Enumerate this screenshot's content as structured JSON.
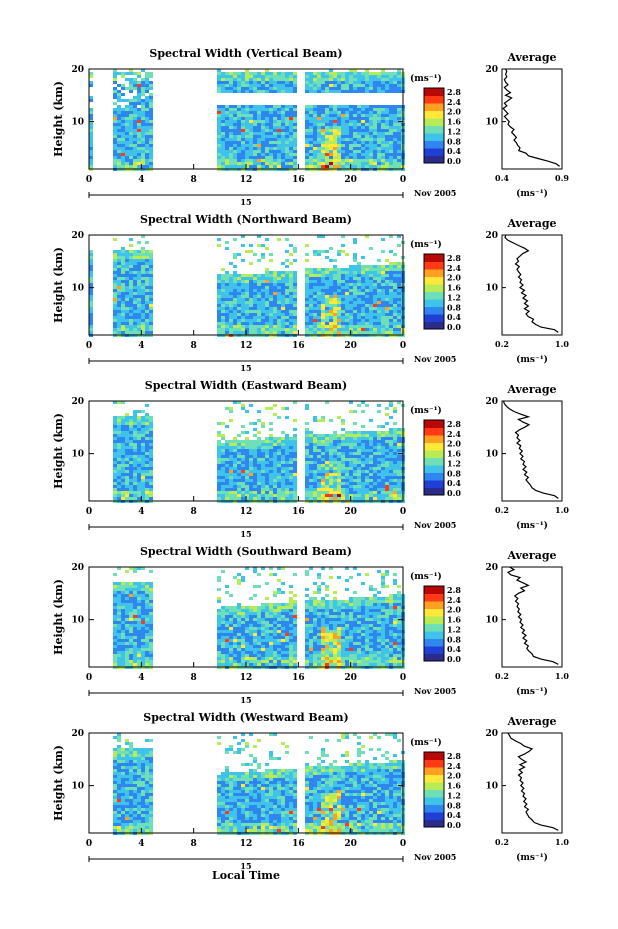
{
  "chart_data": {
    "type": "heatmap",
    "x_axis_label": "Local Time",
    "x_ticks": [
      "0",
      "4",
      "8",
      "12",
      "16",
      "20",
      "0"
    ],
    "date_label": "15",
    "month_label": "Nov 2005",
    "ylabel": "Height (km)",
    "y_ticks": [
      "10",
      "20"
    ],
    "unit_label": "(ms⁻¹)",
    "colorbar_ticks": [
      "2.8",
      "2.4",
      "2.0",
      "1.6",
      "1.2",
      "0.8",
      "0.4",
      "0.0"
    ],
    "colormap": [
      "#2b2b8c",
      "#1f3fd6",
      "#2f86ee",
      "#3fc3ea",
      "#6fe0b6",
      "#b7ec57",
      "#ffe83a",
      "#ffa022",
      "#ff3a15",
      "#b80808"
    ],
    "average_title": "Average",
    "average_unit": "(ms⁻¹)",
    "panels": [
      {
        "title": "Spectral Width (Vertical Beam)",
        "avg_xticks": [
          "0.4",
          "0.9"
        ],
        "avg_xlim": [
          0.4,
          0.9
        ],
        "avg_profile": [
          [
            0.88,
            1.5
          ],
          [
            0.85,
            2
          ],
          [
            0.78,
            2.5
          ],
          [
            0.7,
            3
          ],
          [
            0.62,
            3.5
          ],
          [
            0.6,
            4
          ],
          [
            0.54,
            4.5
          ],
          [
            0.55,
            5
          ],
          [
            0.53,
            5.5
          ],
          [
            0.52,
            6
          ],
          [
            0.5,
            6.5
          ],
          [
            0.52,
            7
          ],
          [
            0.5,
            7.5
          ],
          [
            0.48,
            8
          ],
          [
            0.5,
            8.5
          ],
          [
            0.47,
            9
          ],
          [
            0.45,
            9.5
          ],
          [
            0.46,
            10
          ],
          [
            0.44,
            10.5
          ],
          [
            0.42,
            11
          ],
          [
            0.45,
            11.5
          ],
          [
            0.43,
            12
          ],
          [
            0.41,
            12.5
          ],
          [
            0.44,
            13
          ],
          [
            0.42,
            13.5
          ],
          [
            0.45,
            14
          ],
          [
            0.48,
            14.5
          ],
          [
            0.43,
            15
          ],
          [
            0.47,
            15.5
          ],
          [
            0.44,
            16
          ],
          [
            0.42,
            16.5
          ],
          [
            0.45,
            17
          ],
          [
            0.43,
            17.5
          ],
          [
            0.42,
            18
          ],
          [
            0.44,
            18.5
          ],
          [
            0.43,
            19
          ],
          [
            0.44,
            19.5
          ],
          [
            0.43,
            20
          ]
        ]
      },
      {
        "title": "Spectral Width (Northward Beam)",
        "avg_xticks": [
          "0.2",
          "1.0"
        ],
        "avg_xlim": [
          0.2,
          1.0
        ],
        "avg_profile": [
          [
            0.95,
            1.5
          ],
          [
            0.9,
            2
          ],
          [
            0.72,
            2.5
          ],
          [
            0.65,
            3
          ],
          [
            0.6,
            3.5
          ],
          [
            0.62,
            4
          ],
          [
            0.55,
            4.5
          ],
          [
            0.52,
            5
          ],
          [
            0.56,
            5.5
          ],
          [
            0.5,
            6
          ],
          [
            0.55,
            6.5
          ],
          [
            0.5,
            7
          ],
          [
            0.54,
            7.5
          ],
          [
            0.48,
            8
          ],
          [
            0.52,
            8.5
          ],
          [
            0.46,
            9
          ],
          [
            0.5,
            9.5
          ],
          [
            0.44,
            10
          ],
          [
            0.48,
            10.5
          ],
          [
            0.44,
            11
          ],
          [
            0.46,
            11.5
          ],
          [
            0.42,
            12
          ],
          [
            0.45,
            12.5
          ],
          [
            0.42,
            13
          ],
          [
            0.4,
            13.5
          ],
          [
            0.43,
            14
          ],
          [
            0.38,
            14.5
          ],
          [
            0.42,
            15
          ],
          [
            0.4,
            15.5
          ],
          [
            0.44,
            16
          ],
          [
            0.48,
            16.5
          ],
          [
            0.55,
            17
          ],
          [
            0.5,
            17.5
          ],
          [
            0.42,
            18
          ],
          [
            0.35,
            18.5
          ],
          [
            0.28,
            19
          ],
          [
            0.24,
            19.5
          ],
          [
            0.25,
            20
          ]
        ]
      },
      {
        "title": "Spectral Width (Eastward Beam)",
        "avg_xticks": [
          "0.2",
          "1.0"
        ],
        "avg_xlim": [
          0.2,
          1.0
        ],
        "avg_profile": [
          [
            0.95,
            1.5
          ],
          [
            0.9,
            2
          ],
          [
            0.75,
            2.5
          ],
          [
            0.65,
            3
          ],
          [
            0.6,
            3.5
          ],
          [
            0.58,
            4
          ],
          [
            0.55,
            4.5
          ],
          [
            0.52,
            5
          ],
          [
            0.55,
            5.5
          ],
          [
            0.5,
            6
          ],
          [
            0.53,
            6.5
          ],
          [
            0.48,
            7
          ],
          [
            0.52,
            7.5
          ],
          [
            0.48,
            8
          ],
          [
            0.5,
            8.5
          ],
          [
            0.45,
            9
          ],
          [
            0.48,
            9.5
          ],
          [
            0.44,
            10
          ],
          [
            0.47,
            10.5
          ],
          [
            0.43,
            11
          ],
          [
            0.45,
            11.5
          ],
          [
            0.4,
            12
          ],
          [
            0.44,
            12.5
          ],
          [
            0.4,
            13
          ],
          [
            0.42,
            13.5
          ],
          [
            0.38,
            14
          ],
          [
            0.43,
            14.5
          ],
          [
            0.5,
            15
          ],
          [
            0.56,
            15.5
          ],
          [
            0.48,
            16
          ],
          [
            0.42,
            16.5
          ],
          [
            0.55,
            17
          ],
          [
            0.45,
            17.5
          ],
          [
            0.36,
            18
          ],
          [
            0.3,
            18.5
          ],
          [
            0.26,
            19
          ],
          [
            0.23,
            19.5
          ],
          [
            0.22,
            20
          ]
        ]
      },
      {
        "title": "Spectral Width (Southward Beam)",
        "avg_xticks": [
          "0.2",
          "1.0"
        ],
        "avg_xlim": [
          0.2,
          1.0
        ],
        "avg_profile": [
          [
            0.95,
            1.5
          ],
          [
            0.88,
            2
          ],
          [
            0.72,
            2.5
          ],
          [
            0.62,
            3
          ],
          [
            0.6,
            3.5
          ],
          [
            0.56,
            4
          ],
          [
            0.53,
            4.5
          ],
          [
            0.55,
            5
          ],
          [
            0.5,
            5.5
          ],
          [
            0.53,
            6
          ],
          [
            0.48,
            6.5
          ],
          [
            0.52,
            7
          ],
          [
            0.47,
            7.5
          ],
          [
            0.5,
            8
          ],
          [
            0.45,
            8.5
          ],
          [
            0.48,
            9
          ],
          [
            0.44,
            9.5
          ],
          [
            0.46,
            10
          ],
          [
            0.42,
            10.5
          ],
          [
            0.45,
            11
          ],
          [
            0.41,
            11.5
          ],
          [
            0.43,
            12
          ],
          [
            0.4,
            12.5
          ],
          [
            0.42,
            13
          ],
          [
            0.38,
            13.5
          ],
          [
            0.41,
            14
          ],
          [
            0.37,
            14.5
          ],
          [
            0.42,
            15
          ],
          [
            0.5,
            15.5
          ],
          [
            0.45,
            16
          ],
          [
            0.55,
            16.5
          ],
          [
            0.48,
            17
          ],
          [
            0.4,
            17.5
          ],
          [
            0.44,
            18
          ],
          [
            0.32,
            18.5
          ],
          [
            0.28,
            19
          ],
          [
            0.36,
            19.5
          ],
          [
            0.3,
            20
          ]
        ]
      },
      {
        "title": "Spectral Width (Westward Beam)",
        "avg_xticks": [
          "0.2",
          "1.0"
        ],
        "avg_xlim": [
          0.2,
          1.0
        ],
        "avg_profile": [
          [
            0.95,
            1.5
          ],
          [
            0.88,
            2
          ],
          [
            0.72,
            2.5
          ],
          [
            0.63,
            3
          ],
          [
            0.6,
            3.5
          ],
          [
            0.56,
            4
          ],
          [
            0.54,
            4.5
          ],
          [
            0.52,
            5
          ],
          [
            0.55,
            5.5
          ],
          [
            0.5,
            6
          ],
          [
            0.53,
            6.5
          ],
          [
            0.49,
            7
          ],
          [
            0.52,
            7.5
          ],
          [
            0.48,
            8
          ],
          [
            0.5,
            8.5
          ],
          [
            0.46,
            9
          ],
          [
            0.49,
            9.5
          ],
          [
            0.45,
            10
          ],
          [
            0.48,
            10.5
          ],
          [
            0.44,
            11
          ],
          [
            0.46,
            11.5
          ],
          [
            0.42,
            12
          ],
          [
            0.47,
            12.5
          ],
          [
            0.43,
            13
          ],
          [
            0.5,
            13.5
          ],
          [
            0.44,
            14
          ],
          [
            0.52,
            14.5
          ],
          [
            0.46,
            15
          ],
          [
            0.42,
            15.5
          ],
          [
            0.5,
            16
          ],
          [
            0.56,
            16.5
          ],
          [
            0.6,
            17
          ],
          [
            0.5,
            17.5
          ],
          [
            0.45,
            18
          ],
          [
            0.38,
            18.5
          ],
          [
            0.32,
            19
          ],
          [
            0.3,
            19.5
          ],
          [
            0.28,
            20
          ]
        ]
      }
    ]
  }
}
